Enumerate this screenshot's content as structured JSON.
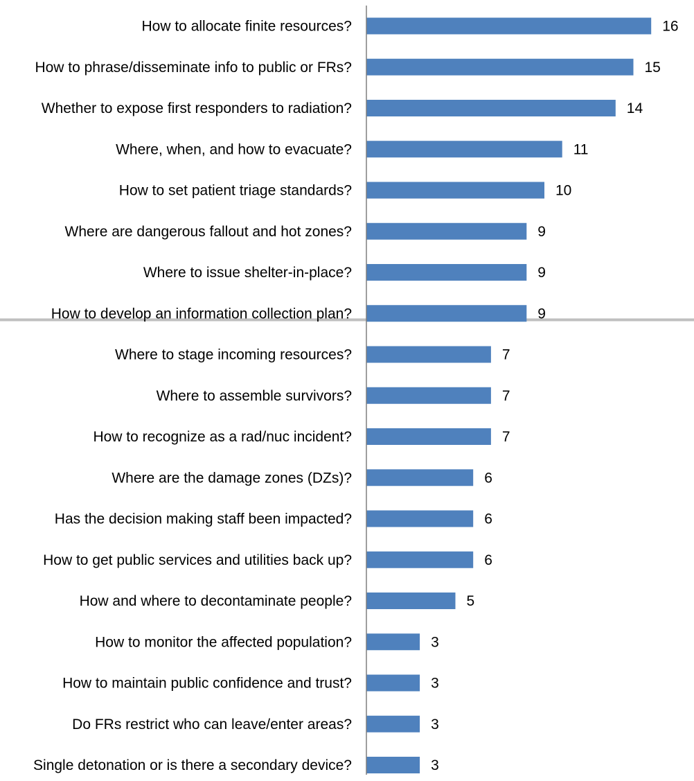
{
  "chart_data": {
    "type": "bar",
    "orientation": "horizontal",
    "categories": [
      "How to allocate finite resources?",
      "How to phrase/disseminate info to public or FRs?",
      "Whether to expose first responders to radiation?",
      "Where, when, and how to evacuate?",
      "How to set patient triage standards?",
      "Where are dangerous fallout and hot zones?",
      "Where to issue shelter-in-place?",
      "How to develop an information collection plan?",
      "Where to stage incoming resources?",
      "Where to assemble survivors?",
      "How to recognize as a rad/nuc incident?",
      "Where are the damage zones (DZs)?",
      "Has the decision making staff been impacted?",
      "How to get public services and utilities back up?",
      "How and where to decontaminate people?",
      "How to monitor the affected population?",
      "How to maintain public confidence and trust?",
      "Do FRs restrict who can leave/enter areas?",
      "Single detonation or is there a secondary device?"
    ],
    "values": [
      16,
      15,
      14,
      11,
      10,
      9,
      9,
      9,
      7,
      7,
      7,
      6,
      6,
      6,
      5,
      3,
      3,
      3,
      3
    ],
    "title": "",
    "xlabel": "",
    "ylabel": "",
    "xlim": [
      0,
      16
    ],
    "data_labels": true,
    "grid": false,
    "legend": "none",
    "separator_after_index": 7,
    "colors": {
      "bar": "#4f81bd",
      "axis": "#7f7f7f",
      "separator": "#bfbfbf",
      "text": "#000000"
    }
  }
}
